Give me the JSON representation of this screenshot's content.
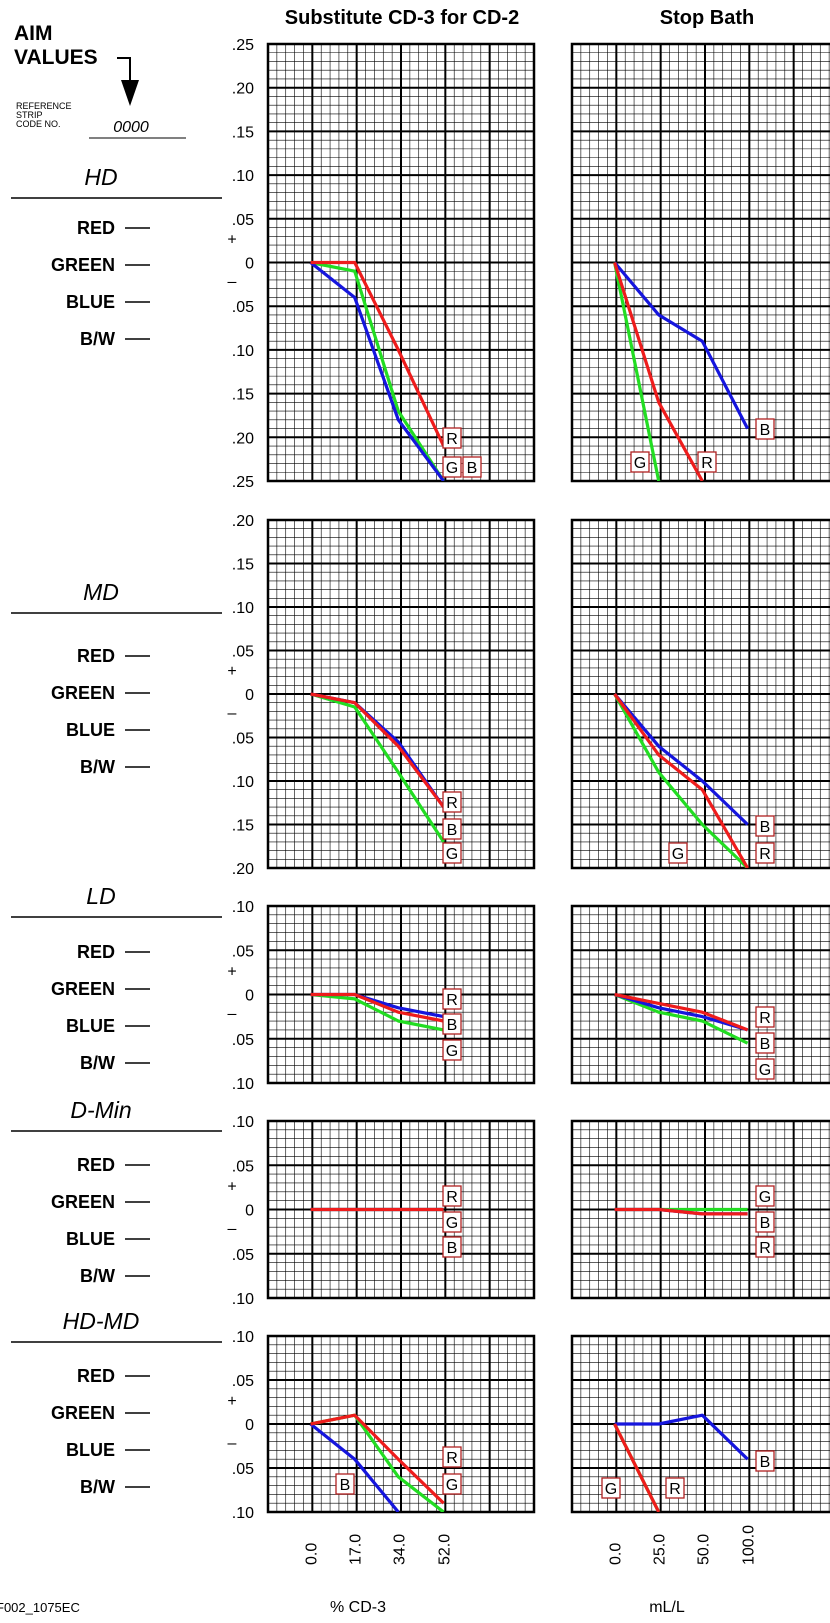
{
  "header": {
    "aim_values": [
      "AIM",
      "VALUES"
    ],
    "reference_label": [
      "REFERENCE",
      "STRIP",
      "CODE NO."
    ],
    "code_no": "0000"
  },
  "columns": [
    "Substitute CD-3 for CD-2",
    "Stop Bath"
  ],
  "row_labels": [
    "RED",
    "GREEN",
    "BLUE",
    "B/W"
  ],
  "sign_plus": "+",
  "sign_minus": "–",
  "footer_id": "F002_1075EC",
  "x_axis_titles": [
    "% CD-3",
    "mL/L"
  ],
  "colors": {
    "red": "#ee1c1c",
    "green": "#22dd22",
    "blue": "#1515dd",
    "tag_border": "#b02020"
  },
  "chart_data": [
    {
      "type": "line",
      "title": "HD",
      "column": "Substitute CD-3 for CD-2",
      "x": [
        0.0,
        17.0,
        34.0,
        52.0
      ],
      "x_labels": [
        "0.0",
        "17.0",
        "34.0",
        "52.0"
      ],
      "y_ticks": [
        ".25",
        ".20",
        ".15",
        ".10",
        ".05",
        "0",
        ".05",
        ".10",
        ".15",
        ".20",
        ".25"
      ],
      "ylim": [
        -0.25,
        0.25
      ],
      "series": [
        {
          "name": "R",
          "color": "red",
          "values": [
            0,
            0,
            -0.1,
            -0.21
          ]
        },
        {
          "name": "G",
          "color": "green",
          "values": [
            0,
            -0.01,
            -0.17,
            -0.25
          ]
        },
        {
          "name": "B",
          "color": "blue",
          "values": [
            0,
            -0.04,
            -0.18,
            -0.25
          ]
        }
      ]
    },
    {
      "type": "line",
      "title": "HD",
      "column": "Stop Bath",
      "x": [
        0.0,
        25.0,
        50.0,
        100.0
      ],
      "x_labels": [
        "0.0",
        "25.0",
        "50.0",
        "100.0"
      ],
      "y_ticks": [
        ".25",
        ".20",
        ".15",
        ".10",
        ".05",
        "0",
        ".05",
        ".10",
        ".15",
        ".20",
        ".25"
      ],
      "ylim": [
        -0.25,
        0.25
      ],
      "series": [
        {
          "name": "B",
          "color": "blue",
          "values": [
            0,
            -0.06,
            -0.09,
            -0.19
          ]
        },
        {
          "name": "R",
          "color": "red",
          "values": [
            0,
            -0.16,
            -0.25,
            null
          ]
        },
        {
          "name": "G",
          "color": "green",
          "values": [
            0,
            -0.25,
            null,
            null
          ]
        }
      ]
    },
    {
      "type": "line",
      "title": "MD",
      "column": "Substitute CD-3 for CD-2",
      "x": [
        0.0,
        17.0,
        34.0,
        52.0
      ],
      "x_labels": [
        "0.0",
        "17.0",
        "34.0",
        "52.0"
      ],
      "y_ticks": [
        ".20",
        ".15",
        ".10",
        ".05",
        "0",
        ".05",
        ".10",
        ".15",
        ".20"
      ],
      "ylim": [
        -0.2,
        0.2
      ],
      "series": [
        {
          "name": "R",
          "color": "red",
          "values": [
            0,
            -0.01,
            -0.06,
            -0.13
          ]
        },
        {
          "name": "B",
          "color": "blue",
          "values": [
            0,
            -0.01,
            -0.055,
            -0.13
          ]
        },
        {
          "name": "G",
          "color": "green",
          "values": [
            0,
            -0.015,
            -0.09,
            -0.17
          ]
        }
      ]
    },
    {
      "type": "line",
      "title": "MD",
      "column": "Stop Bath",
      "x": [
        0.0,
        25.0,
        50.0,
        100.0
      ],
      "x_labels": [
        "0.0",
        "25.0",
        "50.0",
        "100.0"
      ],
      "y_ticks": [
        ".20",
        ".15",
        ".10",
        ".05",
        "0",
        ".05",
        ".10",
        ".15",
        ".20"
      ],
      "ylim": [
        -0.2,
        0.2
      ],
      "series": [
        {
          "name": "B",
          "color": "blue",
          "values": [
            0,
            -0.06,
            -0.1,
            -0.15
          ]
        },
        {
          "name": "G",
          "color": "green",
          "values": [
            0,
            -0.09,
            -0.15,
            -0.2
          ]
        },
        {
          "name": "R",
          "color": "red",
          "values": [
            0,
            -0.07,
            -0.11,
            -0.2
          ]
        }
      ]
    },
    {
      "type": "line",
      "title": "LD",
      "column": "Substitute CD-3 for CD-2",
      "x": [
        0.0,
        17.0,
        34.0,
        52.0
      ],
      "x_labels": [
        "0.0",
        "17.0",
        "34.0",
        "52.0"
      ],
      "y_ticks": [
        ".10",
        ".05",
        "0",
        ".05",
        ".10"
      ],
      "ylim": [
        -0.1,
        0.1
      ],
      "series": [
        {
          "name": "R",
          "color": "red",
          "values": [
            0,
            0,
            -0.02,
            -0.03
          ]
        },
        {
          "name": "B",
          "color": "blue",
          "values": [
            0,
            0,
            -0.015,
            -0.025
          ]
        },
        {
          "name": "G",
          "color": "green",
          "values": [
            0,
            -0.005,
            -0.03,
            -0.04
          ]
        }
      ]
    },
    {
      "type": "line",
      "title": "LD",
      "column": "Stop Bath",
      "x": [
        0.0,
        25.0,
        50.0,
        100.0
      ],
      "x_labels": [
        "0.0",
        "25.0",
        "50.0",
        "100.0"
      ],
      "y_ticks": [
        ".10",
        ".05",
        "0",
        ".05",
        ".10"
      ],
      "ylim": [
        -0.1,
        0.1
      ],
      "series": [
        {
          "name": "R",
          "color": "red",
          "values": [
            0,
            -0.01,
            -0.02,
            -0.04
          ]
        },
        {
          "name": "B",
          "color": "blue",
          "values": [
            0,
            -0.015,
            -0.025,
            -0.04
          ]
        },
        {
          "name": "G",
          "color": "green",
          "values": [
            0,
            -0.02,
            -0.03,
            -0.055
          ]
        }
      ]
    },
    {
      "type": "line",
      "title": "D-Min",
      "column": "Substitute CD-3 for CD-2",
      "x": [
        0.0,
        17.0,
        34.0,
        52.0
      ],
      "x_labels": [
        "0.0",
        "17.0",
        "34.0",
        "52.0"
      ],
      "y_ticks": [
        ".10",
        ".05",
        "0",
        ".05",
        ".10"
      ],
      "ylim": [
        -0.1,
        0.1
      ],
      "series": [
        {
          "name": "R",
          "color": "red",
          "values": [
            0,
            0,
            0,
            0
          ]
        },
        {
          "name": "G",
          "color": "green",
          "values": [
            0,
            0,
            0,
            0
          ]
        },
        {
          "name": "B",
          "color": "blue",
          "values": [
            0,
            0,
            0,
            0
          ]
        }
      ]
    },
    {
      "type": "line",
      "title": "D-Min",
      "column": "Stop Bath",
      "x": [
        0.0,
        25.0,
        50.0,
        100.0
      ],
      "x_labels": [
        "0.0",
        "25.0",
        "50.0",
        "100.0"
      ],
      "y_ticks": [
        ".10",
        ".05",
        "0",
        ".05",
        ".10"
      ],
      "ylim": [
        -0.1,
        0.1
      ],
      "series": [
        {
          "name": "G",
          "color": "green",
          "values": [
            0,
            0,
            0,
            0
          ]
        },
        {
          "name": "B",
          "color": "blue",
          "values": [
            0,
            0,
            -0.005,
            -0.005
          ]
        },
        {
          "name": "R",
          "color": "red",
          "values": [
            0,
            0,
            -0.005,
            -0.005
          ]
        }
      ]
    },
    {
      "type": "line",
      "title": "HD-MD",
      "column": "Substitute CD-3 for CD-2",
      "x": [
        0.0,
        17.0,
        34.0,
        52.0
      ],
      "x_labels": [
        "0.0",
        "17.0",
        "34.0",
        "52.0"
      ],
      "y_ticks": [
        ".10",
        ".05",
        "0",
        ".05",
        ".10"
      ],
      "ylim": [
        -0.1,
        0.1
      ],
      "series": [
        {
          "name": "R",
          "color": "red",
          "values": [
            0,
            0.01,
            -0.04,
            -0.09
          ]
        },
        {
          "name": "G",
          "color": "green",
          "values": [
            0,
            0.01,
            -0.06,
            -0.1
          ]
        },
        {
          "name": "B",
          "color": "blue",
          "values": [
            0,
            -0.04,
            -0.1,
            null
          ]
        }
      ]
    },
    {
      "type": "line",
      "title": "HD-MD",
      "column": "Stop Bath",
      "x": [
        0.0,
        25.0,
        50.0,
        100.0
      ],
      "x_labels": [
        "0.0",
        "25.0",
        "50.0",
        "100.0"
      ],
      "y_ticks": [
        ".10",
        ".05",
        "0",
        ".05",
        ".10"
      ],
      "ylim": [
        -0.1,
        0.1
      ],
      "series": [
        {
          "name": "B",
          "color": "blue",
          "values": [
            0,
            0,
            0.01,
            -0.04
          ]
        },
        {
          "name": "G",
          "color": "green",
          "values": [
            0,
            -0.1,
            null,
            null
          ]
        },
        {
          "name": "R",
          "color": "red",
          "values": [
            0,
            -0.1,
            null,
            null
          ]
        }
      ]
    }
  ]
}
